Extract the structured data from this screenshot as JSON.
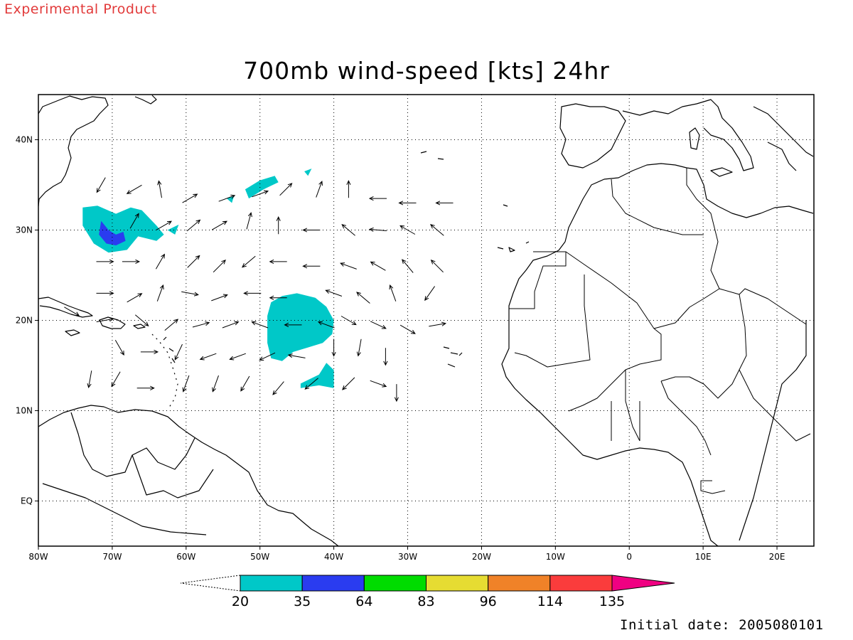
{
  "header": {
    "product_label": "Experimental Product",
    "title": "700mb wind-speed [kts] 24hr"
  },
  "footer": {
    "initial_date": "Initial date: 2005080101"
  },
  "map": {
    "lon_range": [
      -80,
      25
    ],
    "lat_range": [
      -5,
      45
    ],
    "lon_ticks": [
      {
        "lon": -80,
        "label": "80W"
      },
      {
        "lon": -70,
        "label": "70W"
      },
      {
        "lon": -60,
        "label": "60W"
      },
      {
        "lon": -50,
        "label": "50W"
      },
      {
        "lon": -40,
        "label": "40W"
      },
      {
        "lon": -30,
        "label": "30W"
      },
      {
        "lon": -20,
        "label": "20W"
      },
      {
        "lon": -10,
        "label": "10W"
      },
      {
        "lon": 0,
        "label": "0"
      },
      {
        "lon": 10,
        "label": "10E"
      },
      {
        "lon": 20,
        "label": "20E"
      }
    ],
    "lat_ticks": [
      {
        "lat": 40,
        "label": "40N"
      },
      {
        "lat": 30,
        "label": "30N"
      },
      {
        "lat": 20,
        "label": "20N"
      },
      {
        "lat": 10,
        "label": "10N"
      },
      {
        "lat": 0,
        "label": "EQ"
      }
    ],
    "grid": "dotted",
    "wind_regions": [
      {
        "name": "cyclone-north",
        "band": "20-35",
        "color": "#00c8c8",
        "outline": [
          [
            -74,
            32.5
          ],
          [
            -72,
            32.7
          ],
          [
            -69.5,
            31.8
          ],
          [
            -67.5,
            32.5
          ],
          [
            -66,
            32.2
          ],
          [
            -64,
            30.5
          ],
          [
            -63,
            29.5
          ],
          [
            -64,
            28.8
          ],
          [
            -66.5,
            29.3
          ],
          [
            -68,
            27.8
          ],
          [
            -70.5,
            27.5
          ],
          [
            -72.5,
            28.5
          ],
          [
            -74,
            30.5
          ]
        ]
      },
      {
        "name": "cyclone-north-core",
        "band": "35-64",
        "color": "#2a3cf0",
        "outline": [
          [
            -71.5,
            31
          ],
          [
            -70.5,
            30
          ],
          [
            -69.5,
            29.5
          ],
          [
            -68.5,
            29.8
          ],
          [
            -68.2,
            28.8
          ],
          [
            -69.5,
            28.3
          ],
          [
            -70.8,
            28.5
          ],
          [
            -71.8,
            29.5
          ]
        ]
      },
      {
        "name": "streak-1",
        "band": "20-35",
        "color": "#00c8c8",
        "outline": [
          [
            -52,
            34.5
          ],
          [
            -50,
            35.5
          ],
          [
            -48,
            36
          ],
          [
            -47.5,
            35.3
          ],
          [
            -49.5,
            34.5
          ],
          [
            -51.5,
            33.5
          ]
        ]
      },
      {
        "name": "streak-2",
        "band": "20-35",
        "color": "#00c8c8",
        "outline": [
          [
            -44,
            36.5
          ],
          [
            -43,
            36.8
          ],
          [
            -43.5,
            36
          ]
        ]
      },
      {
        "name": "streak-3",
        "band": "20-35",
        "color": "#00c8c8",
        "outline": [
          [
            -54.5,
            33.5
          ],
          [
            -53.5,
            33.8
          ],
          [
            -53.8,
            33
          ]
        ]
      },
      {
        "name": "streak-4",
        "band": "20-35",
        "color": "#00c8c8",
        "outline": [
          [
            -62.5,
            30
          ],
          [
            -61,
            30.6
          ],
          [
            -61.5,
            29.5
          ]
        ]
      },
      {
        "name": "cyclone-south",
        "band": "20-35",
        "color": "#00c8c8",
        "outline": [
          [
            -49,
            20.5
          ],
          [
            -48.5,
            22
          ],
          [
            -47,
            22.7
          ],
          [
            -45,
            23
          ],
          [
            -42.5,
            22.5
          ],
          [
            -41,
            21.5
          ],
          [
            -40,
            20
          ],
          [
            -40.2,
            18.5
          ],
          [
            -41.5,
            17.5
          ],
          [
            -43.5,
            17
          ],
          [
            -45.5,
            16.5
          ],
          [
            -47,
            15.5
          ],
          [
            -48.5,
            15.8
          ],
          [
            -49,
            17.5
          ]
        ]
      },
      {
        "name": "cyclone-south-tail",
        "band": "20-35",
        "color": "#00c8c8",
        "outline": [
          [
            -44.5,
            13
          ],
          [
            -42,
            14
          ],
          [
            -41,
            15.3
          ],
          [
            -40,
            14.5
          ],
          [
            -40,
            12.5
          ],
          [
            -42,
            12.8
          ],
          [
            -44.5,
            12.5
          ]
        ]
      }
    ],
    "wind_vectors": [
      [
        -71.5,
        35,
        -120
      ],
      [
        -67,
        34.5,
        -150
      ],
      [
        -63.5,
        34.5,
        100
      ],
      [
        -59.5,
        33.5,
        30
      ],
      [
        -54.5,
        33.5,
        20
      ],
      [
        -50,
        34,
        20
      ],
      [
        -46.5,
        34.5,
        45
      ],
      [
        -42,
        34.5,
        70
      ],
      [
        -38,
        34.5,
        90
      ],
      [
        -34,
        33.5,
        180
      ],
      [
        -30,
        33,
        180
      ],
      [
        -25,
        33,
        180
      ],
      [
        -67,
        31,
        60
      ],
      [
        -63,
        30.5,
        30
      ],
      [
        -59,
        30.5,
        40
      ],
      [
        -55.5,
        30.5,
        30
      ],
      [
        -51.5,
        31,
        75
      ],
      [
        -47.5,
        30.5,
        90
      ],
      [
        -43,
        30,
        180
      ],
      [
        -38,
        30,
        140
      ],
      [
        -34,
        30,
        175
      ],
      [
        -30,
        30,
        150
      ],
      [
        -26,
        30,
        140
      ],
      [
        -71,
        26.5,
        0
      ],
      [
        -67.5,
        26.5,
        0
      ],
      [
        -63.5,
        26.5,
        60
      ],
      [
        -59,
        26.5,
        45
      ],
      [
        -55.5,
        26,
        45
      ],
      [
        -51.5,
        26.5,
        -140
      ],
      [
        -47.5,
        26.5,
        180
      ],
      [
        -43,
        26,
        180
      ],
      [
        -38,
        26,
        160
      ],
      [
        -34,
        26,
        150
      ],
      [
        -30,
        26,
        130
      ],
      [
        -26,
        26,
        135
      ],
      [
        -71,
        23,
        0
      ],
      [
        -67,
        22.5,
        30
      ],
      [
        -63.5,
        23,
        70
      ],
      [
        -59.5,
        23,
        -10
      ],
      [
        -55.5,
        22.5,
        20
      ],
      [
        -51,
        23,
        180
      ],
      [
        -47.5,
        22.5,
        180
      ],
      [
        -40,
        23,
        160
      ],
      [
        -36,
        22.5,
        140
      ],
      [
        -32,
        23,
        110
      ],
      [
        -27,
        23,
        -125
      ],
      [
        -75.5,
        21,
        -30
      ],
      [
        -71,
        20,
        10
      ],
      [
        -66,
        20,
        -40
      ],
      [
        -62,
        19.5,
        40
      ],
      [
        -58,
        19.5,
        15
      ],
      [
        -54,
        19.5,
        20
      ],
      [
        -50,
        19.5,
        160
      ],
      [
        -45.5,
        19.5,
        180
      ],
      [
        -41,
        19.5,
        160
      ],
      [
        -38,
        20,
        -30
      ],
      [
        -34,
        19.5,
        -25
      ],
      [
        -30,
        19,
        -30
      ],
      [
        -26,
        19.5,
        10
      ],
      [
        -69,
        17,
        -60
      ],
      [
        -65,
        16.5,
        0
      ],
      [
        -61,
        16.5,
        -115
      ],
      [
        -57,
        16,
        -160
      ],
      [
        -53,
        16,
        -160
      ],
      [
        -49,
        16,
        -155
      ],
      [
        -45,
        16,
        170
      ],
      [
        -40,
        17,
        -90
      ],
      [
        -36.5,
        17,
        -100
      ],
      [
        -33,
        16,
        -90
      ],
      [
        -73,
        13.5,
        -100
      ],
      [
        -69.5,
        13.5,
        -120
      ],
      [
        -65.5,
        12.5,
        0
      ],
      [
        -60,
        13,
        -110
      ],
      [
        -56,
        13,
        -110
      ],
      [
        -52,
        13,
        -120
      ],
      [
        -47.5,
        12.5,
        -130
      ],
      [
        -43,
        13,
        -140
      ],
      [
        -38,
        13,
        -135
      ],
      [
        -34,
        13,
        -20
      ],
      [
        -31.5,
        12,
        -90
      ]
    ],
    "colorbar": {
      "bins": [
        {
          "color": "#00c8c8"
        },
        {
          "color": "#2a3cf0"
        },
        {
          "color": "#00dc00"
        },
        {
          "color": "#e6dc32"
        },
        {
          "color": "#f08228"
        },
        {
          "color": "#fa3c3c"
        }
      ],
      "over_color": "#f00082",
      "labels": [
        "20",
        "35",
        "64",
        "83",
        "96",
        "114",
        "135"
      ]
    }
  }
}
